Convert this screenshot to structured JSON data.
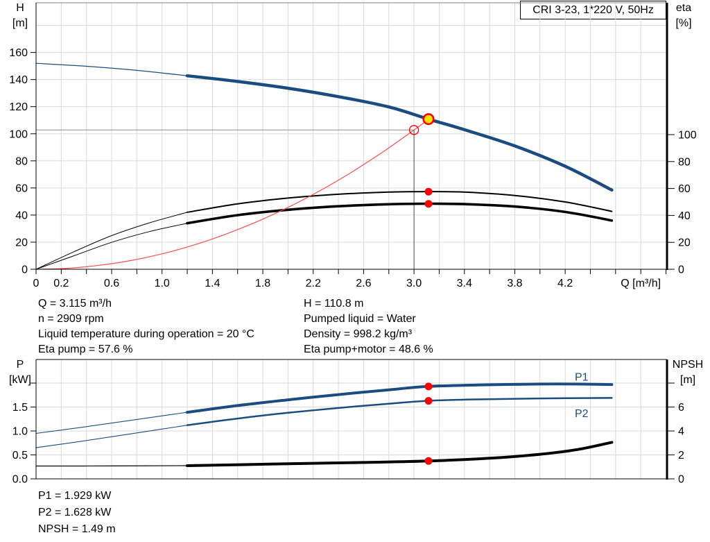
{
  "header": {
    "title_box": "CRI 3-23, 1*220 V, 50Hz"
  },
  "colors": {
    "curve_blue": "#1a4c80",
    "red": "#ff0000",
    "system_red": "#ff4d4d",
    "yellow": "#ffe400",
    "grid": "#d9d9d9",
    "axis": "#000000",
    "crosshair_v": "#4d4d4d",
    "crosshair_h": "#8c8c8c"
  },
  "info_panel_left": {
    "lines": [
      "Q = 3.115 m³/h",
      "n = 2909 rpm",
      "Liquid temperature during operation = 20 °C",
      "Eta pump = 57.6 %"
    ]
  },
  "info_panel_right": {
    "lines": [
      "H = 110.8 m",
      "Pumped liquid = Water",
      "Density = 998.2 kg/m³",
      "Eta pump+motor = 48.6 %"
    ]
  },
  "info_panel_bottom": {
    "lines": [
      "P1 = 1.929 kW",
      "P2 = 1.628 kW",
      "NPSH = 1.49 m"
    ]
  },
  "chart_data": [
    {
      "id": "qh-eta-chart",
      "type": "line",
      "x_axis": {
        "label": "Q [m³/h]",
        "min": 0,
        "max": 5.0,
        "tick_step": 0.2,
        "tick_labels": [
          "0",
          "0.2",
          "0.6",
          "1.0",
          "1.4",
          "1.8",
          "2.2",
          "2.6",
          "3.0",
          "3.4",
          "3.8",
          "4.2"
        ]
      },
      "left_axis": {
        "title": "H",
        "unit": "[m]",
        "min": 0,
        "max": 196,
        "tick_marks": [
          0,
          20,
          40,
          60,
          80,
          100,
          120,
          140,
          160
        ],
        "tick_labels": [
          "0",
          "20",
          "40",
          "60",
          "80",
          "100",
          "120",
          "140",
          "160"
        ]
      },
      "right_axis": {
        "title": "eta",
        "unit": "[%]",
        "min": 0,
        "max": 198,
        "tick_marks": [
          0,
          20,
          40,
          60,
          80,
          100
        ],
        "tick_labels": [
          "0",
          "20",
          "40",
          "60",
          "80",
          "100"
        ]
      },
      "grid": true,
      "series": [
        {
          "name": "H",
          "slug": "h-curve",
          "axis": "left",
          "color": "curve_blue",
          "segments": [
            {
              "width": 1.2,
              "points": [
                [
                  0,
                  152
                ],
                [
                  0.4,
                  149.8
                ],
                [
                  0.8,
                  146.8
                ],
                [
                  1.2,
                  142.8
                ]
              ]
            },
            {
              "width": 4.5,
              "points": [
                [
                  1.2,
                  142.8
                ],
                [
                  1.6,
                  138.6
                ],
                [
                  2.0,
                  133.6
                ],
                [
                  2.4,
                  127.4
                ],
                [
                  2.8,
                  119.8
                ],
                [
                  3.115,
                  110.8
                ],
                [
                  3.4,
                  103.0
                ],
                [
                  3.8,
                  91.0
                ],
                [
                  4.2,
                  76.0
                ],
                [
                  4.57,
                  58.5
                ]
              ]
            }
          ]
        },
        {
          "name": "Eta pump",
          "slug": "eta-pump-curve",
          "axis": "right",
          "color": "axis",
          "segments": [
            {
              "width": 1.0,
              "points": [
                [
                  0,
                  0
                ],
                [
                  0.3,
                  13
                ],
                [
                  0.6,
                  25
                ],
                [
                  0.9,
                  34.5
                ],
                [
                  1.2,
                  42.3
                ]
              ]
            },
            {
              "width": 2.0,
              "points": [
                [
                  1.2,
                  42.3
                ],
                [
                  1.6,
                  48.6
                ],
                [
                  2.0,
                  52.9
                ],
                [
                  2.4,
                  55.7
                ],
                [
                  2.8,
                  57.3
                ],
                [
                  3.115,
                  57.7
                ],
                [
                  3.4,
                  57.3
                ],
                [
                  3.8,
                  54.8
                ],
                [
                  4.2,
                  50.0
                ],
                [
                  4.57,
                  43.0
                ]
              ]
            }
          ]
        },
        {
          "name": "Eta pump+motor",
          "slug": "eta-pump-motor-curve",
          "axis": "right",
          "color": "axis",
          "segments": [
            {
              "width": 1.0,
              "points": [
                [
                  0,
                  0
                ],
                [
                  0.3,
                  10
                ],
                [
                  0.6,
                  20
                ],
                [
                  0.9,
                  28
                ],
                [
                  1.2,
                  34.2
                ]
              ]
            },
            {
              "width": 3.6,
              "points": [
                [
                  1.2,
                  34.2
                ],
                [
                  1.6,
                  40.2
                ],
                [
                  2.0,
                  44.2
                ],
                [
                  2.4,
                  46.8
                ],
                [
                  2.8,
                  48.3
                ],
                [
                  3.115,
                  48.7
                ],
                [
                  3.4,
                  48.4
                ],
                [
                  3.8,
                  46.6
                ],
                [
                  4.2,
                  42.6
                ],
                [
                  4.57,
                  36.2
                ]
              ]
            }
          ]
        },
        {
          "name": "System curve",
          "slug": "system-curve",
          "axis": "left",
          "color": "system_red",
          "segments": [
            {
              "width": 1.2,
              "points": [
                [
                  0,
                  0
                ],
                [
                  0.25,
                  0.7
                ],
                [
                  0.5,
                  2.9
                ],
                [
                  0.75,
                  6.4
                ],
                [
                  1.0,
                  11.4
                ],
                [
                  1.25,
                  17.8
                ],
                [
                  1.5,
                  25.7
                ],
                [
                  1.75,
                  35.0
                ],
                [
                  2.0,
                  45.7
                ],
                [
                  2.25,
                  57.8
                ],
                [
                  2.5,
                  71.4
                ],
                [
                  2.75,
                  86.4
                ],
                [
                  3.0,
                  102.8
                ],
                [
                  3.115,
                  110.8
                ]
              ]
            }
          ]
        }
      ],
      "markers": [
        {
          "name": "requested-duty-point",
          "style": "open-circle",
          "axis": "left",
          "q": 3.0,
          "value": 102.8,
          "crosshair": true
        },
        {
          "name": "duty-point",
          "style": "yellow-dot",
          "axis": "left",
          "q": 3.115,
          "value": 110.8
        },
        {
          "name": "eta-pump-point",
          "style": "red-dot",
          "axis": "right",
          "q": 3.115,
          "value": 57.6
        },
        {
          "name": "eta-pump-motor-point",
          "style": "red-dot",
          "axis": "right",
          "q": 3.115,
          "value": 48.6
        }
      ],
      "series_labels": []
    },
    {
      "id": "power-npsh-chart",
      "type": "line",
      "x_axis": {
        "label": "",
        "min": 0,
        "max": 5.0,
        "tick_step": 0.2,
        "tick_labels": []
      },
      "left_axis": {
        "title": "P",
        "unit": "[kW]",
        "min": 0,
        "max": 2.49,
        "tick_marks": [
          0,
          0.5,
          1.0,
          1.5,
          2.0
        ],
        "tick_labels": [
          "0.0",
          "0.5",
          "1.0",
          "1.5"
        ]
      },
      "right_axis": {
        "title": "NPSH",
        "unit": "[m]",
        "min": 0,
        "max": 9.97,
        "tick_marks": [
          0,
          2,
          4,
          6,
          8
        ],
        "tick_labels": [
          "0",
          "2",
          "4",
          "6"
        ]
      },
      "grid": true,
      "series": [
        {
          "name": "P1",
          "slug": "p1-curve",
          "axis": "left",
          "color": "curve_blue",
          "segments": [
            {
              "width": 1.1,
              "points": [
                [
                  0,
                  0.95
                ],
                [
                  0.4,
                  1.09
                ],
                [
                  0.8,
                  1.24
                ],
                [
                  1.2,
                  1.39
                ]
              ]
            },
            {
              "width": 4.0,
              "points": [
                [
                  1.2,
                  1.39
                ],
                [
                  1.6,
                  1.53
                ],
                [
                  2.0,
                  1.65
                ],
                [
                  2.4,
                  1.76
                ],
                [
                  2.8,
                  1.86
                ],
                [
                  3.115,
                  1.93
                ],
                [
                  3.5,
                  1.96
                ],
                [
                  4.0,
                  1.98
                ],
                [
                  4.3,
                  1.98
                ],
                [
                  4.57,
                  1.97
                ]
              ]
            }
          ]
        },
        {
          "name": "P2",
          "slug": "p2-curve",
          "axis": "left",
          "color": "curve_blue",
          "segments": [
            {
              "width": 1.1,
              "points": [
                [
                  0,
                  0.65
                ],
                [
                  0.4,
                  0.8
                ],
                [
                  0.8,
                  0.96
                ],
                [
                  1.2,
                  1.12
                ]
              ]
            },
            {
              "width": 2.5,
              "points": [
                [
                  1.2,
                  1.12
                ],
                [
                  1.6,
                  1.26
                ],
                [
                  2.0,
                  1.38
                ],
                [
                  2.4,
                  1.48
                ],
                [
                  2.8,
                  1.57
                ],
                [
                  3.115,
                  1.63
                ],
                [
                  3.5,
                  1.66
                ],
                [
                  4.0,
                  1.68
                ],
                [
                  4.57,
                  1.69
                ]
              ]
            }
          ]
        },
        {
          "name": "NPSH",
          "slug": "npsh-curve",
          "axis": "right",
          "color": "axis",
          "segments": [
            {
              "width": 1.2,
              "points": [
                [
                  0,
                  1.07
                ],
                [
                  0.6,
                  1.08
                ],
                [
                  1.2,
                  1.1
                ]
              ]
            },
            {
              "width": 4.0,
              "points": [
                [
                  1.2,
                  1.1
                ],
                [
                  2.0,
                  1.26
                ],
                [
                  2.6,
                  1.37
                ],
                [
                  3.115,
                  1.49
                ],
                [
                  3.6,
                  1.72
                ],
                [
                  4.0,
                  2.05
                ],
                [
                  4.3,
                  2.45
                ],
                [
                  4.57,
                  3.05
                ]
              ]
            }
          ]
        }
      ],
      "markers": [
        {
          "name": "p1-point",
          "style": "red-dot",
          "axis": "left",
          "q": 3.115,
          "value": 1.929
        },
        {
          "name": "p2-point",
          "style": "red-dot",
          "axis": "left",
          "q": 3.115,
          "value": 1.628
        },
        {
          "name": "npsh-point",
          "style": "red-dot",
          "axis": "right",
          "q": 3.115,
          "value": 1.49
        }
      ],
      "series_labels": [
        {
          "text": "P1",
          "slug": "p1-curve-label",
          "axis": "left",
          "q": 4.33,
          "value": 2.05
        },
        {
          "text": "P2",
          "slug": "p2-curve-label",
          "axis": "left",
          "q": 4.33,
          "value": 1.29
        }
      ]
    }
  ]
}
